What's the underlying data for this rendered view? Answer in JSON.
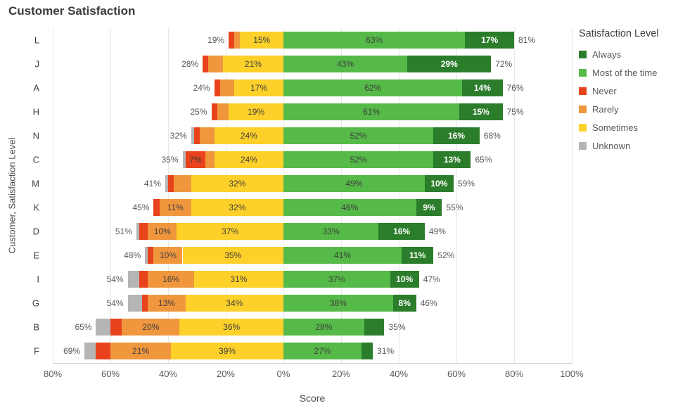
{
  "chart_data": {
    "type": "diverging-stacked-bar",
    "title": "Customer Satisfaction",
    "xlabel": "Score",
    "ylabel": "Customer,  Satisfaction Level",
    "axis": {
      "min": -80,
      "max": 100,
      "ticks": [
        {
          "value": -80,
          "label": "80%"
        },
        {
          "value": -60,
          "label": "60%"
        },
        {
          "value": -40,
          "label": "40%"
        },
        {
          "value": -20,
          "label": "20%"
        },
        {
          "value": 0,
          "label": "0%"
        },
        {
          "value": 20,
          "label": "20%"
        },
        {
          "value": 40,
          "label": "40%"
        },
        {
          "value": 60,
          "label": "60%"
        },
        {
          "value": 80,
          "label": "80%"
        },
        {
          "value": 100,
          "label": "100%"
        }
      ]
    },
    "colors": {
      "always": "#2b7d2b",
      "most": "#55ba47",
      "never": "#e8431c",
      "rarely": "#f0973e",
      "sometimes": "#fdd02a",
      "unknown": "#b5b5b5"
    },
    "legend": {
      "title": "Satisfaction Level",
      "items": [
        {
          "key": "always",
          "label": "Always"
        },
        {
          "key": "most",
          "label": "Most of the time"
        },
        {
          "key": "never",
          "label": "Never"
        },
        {
          "key": "rarely",
          "label": "Rarely"
        },
        {
          "key": "sometimes",
          "label": "Sometimes"
        },
        {
          "key": "unknown",
          "label": "Unknown"
        }
      ]
    },
    "rows": [
      {
        "category": "L",
        "neg_label": "19%",
        "pos_label": "81%",
        "neg": [
          {
            "key": "sometimes",
            "value": 15,
            "label": "15%"
          },
          {
            "key": "rarely",
            "value": 2
          },
          {
            "key": "never",
            "value": 2
          },
          {
            "key": "unknown",
            "value": 0
          }
        ],
        "pos": [
          {
            "key": "most",
            "value": 63,
            "label": "63%"
          },
          {
            "key": "always",
            "value": 17,
            "label": "17%"
          }
        ]
      },
      {
        "category": "J",
        "neg_label": "28%",
        "pos_label": "72%",
        "neg": [
          {
            "key": "sometimes",
            "value": 21,
            "label": "21%"
          },
          {
            "key": "rarely",
            "value": 5
          },
          {
            "key": "never",
            "value": 2
          },
          {
            "key": "unknown",
            "value": 0
          }
        ],
        "pos": [
          {
            "key": "most",
            "value": 43,
            "label": "43%"
          },
          {
            "key": "always",
            "value": 29,
            "label": "29%"
          }
        ]
      },
      {
        "category": "A",
        "neg_label": "24%",
        "pos_label": "76%",
        "neg": [
          {
            "key": "sometimes",
            "value": 17,
            "label": "17%"
          },
          {
            "key": "rarely",
            "value": 5
          },
          {
            "key": "never",
            "value": 2
          },
          {
            "key": "unknown",
            "value": 0
          }
        ],
        "pos": [
          {
            "key": "most",
            "value": 62,
            "label": "62%"
          },
          {
            "key": "always",
            "value": 14,
            "label": "14%"
          }
        ]
      },
      {
        "category": "H",
        "neg_label": "25%",
        "pos_label": "75%",
        "neg": [
          {
            "key": "sometimes",
            "value": 19,
            "label": "19%"
          },
          {
            "key": "rarely",
            "value": 4
          },
          {
            "key": "never",
            "value": 2
          },
          {
            "key": "unknown",
            "value": 0
          }
        ],
        "pos": [
          {
            "key": "most",
            "value": 61,
            "label": "61%"
          },
          {
            "key": "always",
            "value": 15,
            "label": "15%"
          }
        ]
      },
      {
        "category": "N",
        "neg_label": "32%",
        "pos_label": "68%",
        "neg": [
          {
            "key": "sometimes",
            "value": 24,
            "label": "24%"
          },
          {
            "key": "rarely",
            "value": 5
          },
          {
            "key": "never",
            "value": 2
          },
          {
            "key": "unknown",
            "value": 1
          }
        ],
        "pos": [
          {
            "key": "most",
            "value": 52,
            "label": "52%"
          },
          {
            "key": "always",
            "value": 16,
            "label": "16%"
          }
        ]
      },
      {
        "category": "C",
        "neg_label": "35%",
        "pos_label": "65%",
        "neg": [
          {
            "key": "sometimes",
            "value": 24,
            "label": "24%"
          },
          {
            "key": "rarely",
            "value": 3
          },
          {
            "key": "never",
            "value": 7,
            "label": "7%"
          },
          {
            "key": "unknown",
            "value": 1
          }
        ],
        "pos": [
          {
            "key": "most",
            "value": 52,
            "label": "52%"
          },
          {
            "key": "always",
            "value": 13,
            "label": "13%"
          }
        ]
      },
      {
        "category": "M",
        "neg_label": "41%",
        "pos_label": "59%",
        "neg": [
          {
            "key": "sometimes",
            "value": 32,
            "label": "32%"
          },
          {
            "key": "rarely",
            "value": 6
          },
          {
            "key": "never",
            "value": 2
          },
          {
            "key": "unknown",
            "value": 1
          }
        ],
        "pos": [
          {
            "key": "most",
            "value": 49,
            "label": "49%"
          },
          {
            "key": "always",
            "value": 10,
            "label": "10%"
          }
        ]
      },
      {
        "category": "K",
        "neg_label": "45%",
        "pos_label": "55%",
        "neg": [
          {
            "key": "sometimes",
            "value": 32,
            "label": "32%"
          },
          {
            "key": "rarely",
            "value": 11,
            "label": "11%"
          },
          {
            "key": "never",
            "value": 2
          },
          {
            "key": "unknown",
            "value": 0
          }
        ],
        "pos": [
          {
            "key": "most",
            "value": 46,
            "label": "46%"
          },
          {
            "key": "always",
            "value": 9,
            "label": "9%"
          }
        ]
      },
      {
        "category": "D",
        "neg_label": "51%",
        "pos_label": "49%",
        "neg": [
          {
            "key": "sometimes",
            "value": 37,
            "label": "37%"
          },
          {
            "key": "rarely",
            "value": 10,
            "label": "10%"
          },
          {
            "key": "never",
            "value": 3
          },
          {
            "key": "unknown",
            "value": 1
          }
        ],
        "pos": [
          {
            "key": "most",
            "value": 33,
            "label": "33%"
          },
          {
            "key": "always",
            "value": 16,
            "label": "16%"
          }
        ]
      },
      {
        "category": "E",
        "neg_label": "48%",
        "pos_label": "52%",
        "neg": [
          {
            "key": "sometimes",
            "value": 35,
            "label": "35%"
          },
          {
            "key": "rarely",
            "value": 10,
            "label": "10%"
          },
          {
            "key": "never",
            "value": 2
          },
          {
            "key": "unknown",
            "value": 1
          }
        ],
        "pos": [
          {
            "key": "most",
            "value": 41,
            "label": "41%"
          },
          {
            "key": "always",
            "value": 11,
            "label": "11%"
          }
        ]
      },
      {
        "category": "I",
        "neg_label": "54%",
        "pos_label": "47%",
        "neg": [
          {
            "key": "sometimes",
            "value": 31,
            "label": "31%"
          },
          {
            "key": "rarely",
            "value": 16,
            "label": "16%"
          },
          {
            "key": "never",
            "value": 3
          },
          {
            "key": "unknown",
            "value": 4
          }
        ],
        "pos": [
          {
            "key": "most",
            "value": 37,
            "label": "37%"
          },
          {
            "key": "always",
            "value": 10,
            "label": "10%"
          }
        ]
      },
      {
        "category": "G",
        "neg_label": "54%",
        "pos_label": "46%",
        "neg": [
          {
            "key": "sometimes",
            "value": 34,
            "label": "34%"
          },
          {
            "key": "rarely",
            "value": 13,
            "label": "13%"
          },
          {
            "key": "never",
            "value": 2
          },
          {
            "key": "unknown",
            "value": 5
          }
        ],
        "pos": [
          {
            "key": "most",
            "value": 38,
            "label": "38%"
          },
          {
            "key": "always",
            "value": 8,
            "label": "8%"
          }
        ]
      },
      {
        "category": "B",
        "neg_label": "65%",
        "pos_label": "35%",
        "neg": [
          {
            "key": "sometimes",
            "value": 36,
            "label": "36%"
          },
          {
            "key": "rarely",
            "value": 20,
            "label": "20%"
          },
          {
            "key": "never",
            "value": 4
          },
          {
            "key": "unknown",
            "value": 5
          }
        ],
        "pos": [
          {
            "key": "most",
            "value": 28,
            "label": "28%"
          },
          {
            "key": "always",
            "value": 7
          }
        ]
      },
      {
        "category": "F",
        "neg_label": "69%",
        "pos_label": "31%",
        "neg": [
          {
            "key": "sometimes",
            "value": 39,
            "label": "39%"
          },
          {
            "key": "rarely",
            "value": 21,
            "label": "21%"
          },
          {
            "key": "never",
            "value": 5
          },
          {
            "key": "unknown",
            "value": 4
          }
        ],
        "pos": [
          {
            "key": "most",
            "value": 27,
            "label": "27%"
          },
          {
            "key": "always",
            "value": 4
          }
        ]
      }
    ]
  }
}
